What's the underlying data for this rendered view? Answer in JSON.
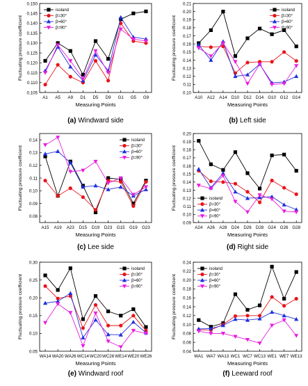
{
  "legend_labels": [
    "isoland",
    "β=30°",
    "β=60°",
    "β=90°"
  ],
  "series_colors": [
    "#000000",
    "#e8141a",
    "#1f2fdc",
    "#e81ee0"
  ],
  "series_markers": [
    "square",
    "circle",
    "triangle-up",
    "triangle-down"
  ],
  "chart_data": [
    {
      "type": "line",
      "caption_letter": "(a)",
      "caption_text": "Windward side",
      "xlabel": "Measuring Points",
      "ylabel": "Fluctuating pressure coefficient",
      "categories": [
        "A1",
        "A5",
        "A9",
        "D1",
        "D5",
        "D9",
        "G1",
        "G5",
        "G9"
      ],
      "ylim": [
        0.105,
        0.15
      ],
      "yticks": [
        0.105,
        0.11,
        0.115,
        0.12,
        0.125,
        0.13,
        0.135,
        0.14,
        0.145,
        0.15
      ],
      "tick_decimals": 3,
      "legend_position": "top-left",
      "series": [
        {
          "name": "isoland",
          "values": [
            0.121,
            0.13,
            0.126,
            0.114,
            0.131,
            0.122,
            0.142,
            0.145,
            0.146
          ]
        },
        {
          "name": "β=30°",
          "values": [
            0.109,
            0.119,
            0.113,
            0.11,
            0.121,
            0.111,
            0.14,
            0.131,
            0.13
          ]
        },
        {
          "name": "β=60°",
          "values": [
            0.116,
            0.128,
            0.118,
            0.111,
            0.124,
            0.116,
            0.143,
            0.133,
            0.132
          ]
        },
        {
          "name": "β=90°",
          "values": [
            0.115,
            0.129,
            0.121,
            0.112,
            0.126,
            0.115,
            0.137,
            0.132,
            0.131
          ]
        }
      ]
    },
    {
      "type": "line",
      "caption_letter": "(b)",
      "caption_text": "Left side",
      "xlabel": "Measuring Points",
      "ylabel": "Fluctuating pressure coefficient",
      "categories": [
        "A10",
        "A12",
        "A14",
        "D10",
        "D12",
        "D14",
        "G10",
        "G12",
        "G14"
      ],
      "ylim": [
        0.1,
        0.21
      ],
      "yticks": [
        0.1,
        0.11,
        0.12,
        0.13,
        0.14,
        0.15,
        0.16,
        0.17,
        0.18,
        0.19,
        0.2,
        0.21
      ],
      "tick_decimals": 2,
      "legend_position": "top-right",
      "series": [
        {
          "name": "isoland",
          "values": [
            0.161,
            0.177,
            0.2,
            0.145,
            0.167,
            0.179,
            0.172,
            0.177,
            0.157
          ]
        },
        {
          "name": "β=30°",
          "values": [
            0.157,
            0.156,
            0.157,
            0.124,
            0.137,
            0.138,
            0.138,
            0.15,
            0.139
          ]
        },
        {
          "name": "β=60°",
          "values": [
            0.159,
            0.14,
            0.163,
            0.12,
            0.122,
            0.135,
            0.112,
            0.113,
            0.12
          ]
        },
        {
          "name": "β=90°",
          "values": [
            0.155,
            0.145,
            0.161,
            0.138,
            0.111,
            0.135,
            0.11,
            0.111,
            0.133
          ]
        }
      ]
    },
    {
      "type": "line",
      "caption_letter": "(c)",
      "caption_text": "Lee side",
      "xlabel": "Measuring Points",
      "ylabel": "Fluctuating pressure coefficient",
      "categories": [
        "A15",
        "A19",
        "A23",
        "D15",
        "D19",
        "D23",
        "G15",
        "G19",
        "G23"
      ],
      "ylim": [
        0.075,
        0.145
      ],
      "yticks": [
        0.08,
        0.09,
        0.1,
        0.11,
        0.12,
        0.13,
        0.14
      ],
      "tick_decimals": 2,
      "legend_position": "top-right",
      "series": [
        {
          "name": "isoland",
          "values": [
            0.127,
            0.096,
            0.123,
            0.104,
            0.083,
            0.11,
            0.109,
            0.09,
            0.108
          ]
        },
        {
          "name": "β=30°",
          "values": [
            0.108,
            0.096,
            0.102,
            0.095,
            0.085,
            0.108,
            0.107,
            0.088,
            0.107
          ]
        },
        {
          "name": "β=60°",
          "values": [
            0.129,
            0.131,
            0.122,
            0.103,
            0.104,
            0.101,
            0.103,
            0.096,
            0.101
          ]
        },
        {
          "name": "β=90°",
          "values": [
            0.136,
            0.142,
            0.115,
            0.116,
            0.123,
            0.106,
            0.11,
            0.097,
            0.103
          ]
        }
      ]
    },
    {
      "type": "line",
      "caption_letter": "(d)",
      "caption_text": "Right side",
      "xlabel": "Measuring Points",
      "ylabel": "Fluctuating pressure coefficient",
      "categories": [
        "A24",
        "A26",
        "A28",
        "D24",
        "D26",
        "D28",
        "G24",
        "G26",
        "G28"
      ],
      "ylim": [
        0.09,
        0.2
      ],
      "yticks": [
        0.09,
        0.1,
        0.11,
        0.12,
        0.13,
        0.14,
        0.15,
        0.16,
        0.17,
        0.18,
        0.19,
        0.2
      ],
      "tick_decimals": 2,
      "legend_position": "bottom-left",
      "series": [
        {
          "name": "isoland",
          "values": [
            0.191,
            0.162,
            0.155,
            0.177,
            0.151,
            0.132,
            0.173,
            0.174,
            0.154
          ]
        },
        {
          "name": "β=30°",
          "values": [
            0.154,
            0.141,
            0.14,
            0.138,
            0.128,
            0.115,
            0.142,
            0.133,
            0.125
          ]
        },
        {
          "name": "β=60°",
          "values": [
            0.156,
            0.133,
            0.151,
            0.128,
            0.12,
            0.121,
            0.122,
            0.112,
            0.106
          ]
        },
        {
          "name": "β=90°",
          "values": [
            0.136,
            0.132,
            0.148,
            0.116,
            0.103,
            0.124,
            0.119,
            0.104,
            0.103
          ]
        }
      ]
    },
    {
      "type": "line",
      "caption_letter": "(e)",
      "caption_text": "Windward roof",
      "xlabel": "Measuring Points",
      "ylabel": "Fluctuating pressure coefficient",
      "categories": [
        "WA14",
        "WA20",
        "WA26",
        "WC14",
        "WC20",
        "WC26",
        "WE14",
        "WE20",
        "WE26"
      ],
      "ylim": [
        0.05,
        0.3
      ],
      "yticks": [
        0.05,
        0.1,
        0.15,
        0.2,
        0.25,
        0.3
      ],
      "tick_decimals": 2,
      "legend_position": "top-right",
      "series": [
        {
          "name": "isoland",
          "values": [
            0.263,
            0.222,
            0.283,
            0.14,
            0.205,
            0.162,
            0.15,
            0.168,
            0.118
          ]
        },
        {
          "name": "β=30°",
          "values": [
            0.233,
            0.198,
            0.205,
            0.115,
            0.18,
            0.122,
            0.122,
            0.15,
            0.108
          ]
        },
        {
          "name": "β=60°",
          "values": [
            0.185,
            0.19,
            0.213,
            0.088,
            0.138,
            0.097,
            0.096,
            0.132,
            0.102
          ]
        },
        {
          "name": "β=90°",
          "values": [
            0.13,
            0.183,
            0.158,
            0.065,
            0.157,
            0.078,
            0.062,
            0.108,
            0.1
          ]
        }
      ]
    },
    {
      "type": "line",
      "caption_letter": "(f)",
      "caption_text": "Leeward roof",
      "xlabel": "Measuring Points",
      "ylabel": "Fluctuating pressure coefficient",
      "categories": [
        "WA1",
        "WA7",
        "WA13",
        "WC1",
        "WC7",
        "WC13",
        "WE1",
        "WE7",
        "WE13"
      ],
      "ylim": [
        0.04,
        0.24
      ],
      "yticks": [
        0.04,
        0.06,
        0.08,
        0.1,
        0.12,
        0.14,
        0.16,
        0.18,
        0.2,
        0.22,
        0.24
      ],
      "tick_decimals": 2,
      "legend_position": "top-left",
      "series": [
        {
          "name": "isoland",
          "values": [
            0.11,
            0.095,
            0.103,
            0.168,
            0.133,
            0.143,
            0.23,
            0.158,
            0.218
          ]
        },
        {
          "name": "β=30°",
          "values": [
            0.088,
            0.088,
            0.1,
            0.119,
            0.12,
            0.12,
            0.162,
            0.142,
            0.158
          ]
        },
        {
          "name": "β=60°",
          "values": [
            0.09,
            0.091,
            0.098,
            0.112,
            0.11,
            0.113,
            0.128,
            0.12,
            0.112
          ]
        },
        {
          "name": "β=90°",
          "values": [
            0.085,
            0.08,
            0.08,
            0.073,
            0.066,
            0.058,
            0.098,
            0.11,
            0.075
          ]
        }
      ]
    }
  ]
}
